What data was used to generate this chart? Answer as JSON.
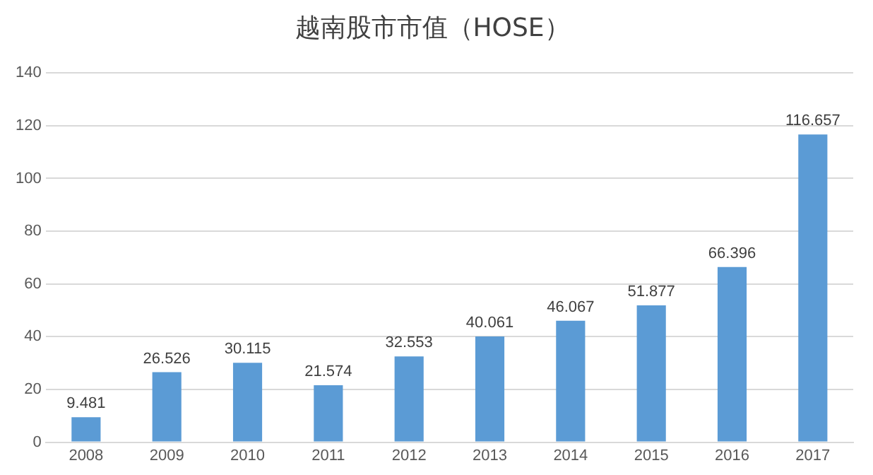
{
  "chart_data": {
    "type": "bar",
    "title": "越南股市市值（HOSE）",
    "categories": [
      "2008",
      "2009",
      "2010",
      "2011",
      "2012",
      "2013",
      "2014",
      "2015",
      "2016",
      "2017"
    ],
    "values": [
      9.481,
      26.526,
      30.115,
      21.574,
      32.553,
      40.061,
      46.067,
      51.877,
      66.396,
      116.657
    ],
    "color": "#5b9bd5",
    "ylim": [
      0,
      140
    ],
    "yticks": [
      0,
      20,
      40,
      60,
      80,
      100,
      120,
      140
    ],
    "grid": "y",
    "data_labels": true
  }
}
